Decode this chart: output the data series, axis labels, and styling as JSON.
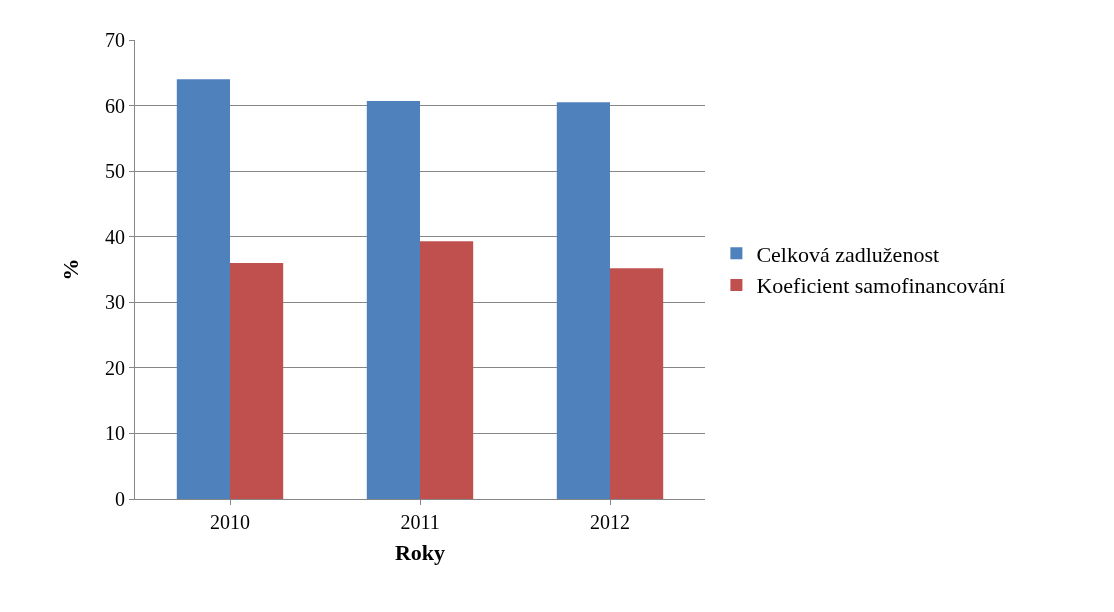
{
  "chart_data": {
    "type": "bar",
    "xlabel": "Roky",
    "ylabel": "%",
    "categories": [
      "2010",
      "2011",
      "2012"
    ],
    "series": [
      {
        "name": "Celková zadluženost",
        "color": "#4f81bd",
        "values": [
          64.0,
          60.7,
          60.5
        ]
      },
      {
        "name": "Koeficient samofinancování",
        "color": "#c0504d",
        "values": [
          36.0,
          39.3,
          35.2
        ]
      }
    ],
    "ylim": [
      0,
      70
    ],
    "yticks": [
      0,
      10,
      20,
      30,
      40,
      50,
      60,
      70
    ],
    "grid": "y",
    "legend": "right"
  }
}
